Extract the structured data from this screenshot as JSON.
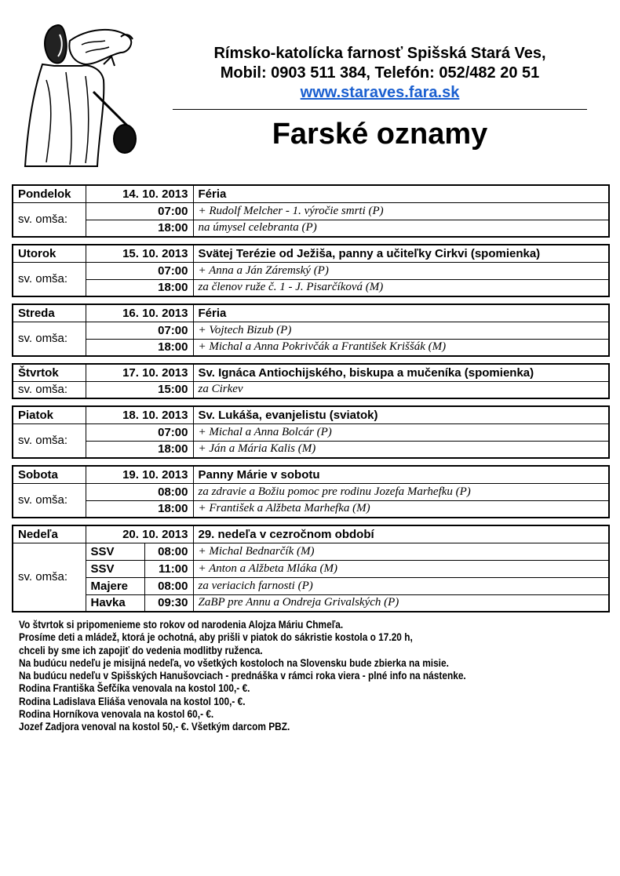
{
  "header": {
    "line1": "Rímsko-katolícka farnosť Spišská Stará Ves,",
    "line2": "Mobil: 0903 511 384, Telefón: 052/482 20 51",
    "website": "www.staraves.fara.sk",
    "title": "Farské oznamy"
  },
  "mass_label": "sv. omša:",
  "days": [
    {
      "day": "Pondelok",
      "date": "14. 10. 2013",
      "name": "Féria",
      "masses": [
        {
          "time": "07:00",
          "intention": "+ Rudolf Melcher - 1. výročie smrti (P)"
        },
        {
          "time": "18:00",
          "intention": "na úmysel celebranta (P)"
        }
      ]
    },
    {
      "day": "Utorok",
      "date": "15. 10. 2013",
      "name": "Svätej Terézie od Ježiša, panny a učiteľky Cirkvi (spomienka)",
      "masses": [
        {
          "time": "07:00",
          "intention": "+ Anna a Ján Záremský (P)"
        },
        {
          "time": "18:00",
          "intention": "za členov ruže č. 1 - J. Pisarčíková (M)"
        }
      ]
    },
    {
      "day": "Streda",
      "date": "16. 10. 2013",
      "name": "Féria",
      "masses": [
        {
          "time": "07:00",
          "intention": "+ Vojtech Bizub (P)"
        },
        {
          "time": "18:00",
          "intention": "+ Michal a Anna Pokrivčák a František Kriššák (M)"
        }
      ]
    },
    {
      "day": "Štvrtok",
      "date": "17. 10. 2013",
      "name": "Sv. Ignáca Antiochijského, biskupa a mučeníka (spomienka)",
      "masses": [
        {
          "time": "15:00",
          "intention": "za Cirkev"
        }
      ]
    },
    {
      "day": "Piatok",
      "date": "18. 10. 2013",
      "name": "Sv. Lukáša, evanjelistu (sviatok)",
      "masses": [
        {
          "time": "07:00",
          "intention": "+ Michal a Anna Bolcár (P)"
        },
        {
          "time": "18:00",
          "intention": "+ Ján a Mária Kalis (M)"
        }
      ]
    },
    {
      "day": "Sobota",
      "date": "19. 10. 2013",
      "name": "Panny Márie v sobotu",
      "masses": [
        {
          "time": "08:00",
          "intention": "za zdravie a Božiu pomoc pre rodinu Jozefa Marhefku (P)"
        },
        {
          "time": "18:00",
          "intention": "+ František a Alžbeta Marhefka (M)"
        }
      ]
    },
    {
      "day": "Nedeľa",
      "date": "20. 10. 2013",
      "name": "29. nedeľa v cezročnom období",
      "masses": [
        {
          "place": "SSV",
          "time": "08:00",
          "intention": "+ Michal Bednarčík (M)"
        },
        {
          "place": "SSV",
          "time": "11:00",
          "intention": "+ Anton a Alžbeta Mláka (M)"
        },
        {
          "place": "Majere",
          "time": "08:00",
          "intention": "za veriacich farnosti (P)"
        },
        {
          "place": "Havka",
          "time": "09:30",
          "intention": "ZaBP pre Annu a Ondreja Grivalských (P)"
        }
      ]
    }
  ],
  "notes": [
    "Vo štvrtok si pripomenieme sto rokov od narodenia Alojza Máriu Chmeľa.",
    "Prosíme deti a mládež, ktorá je ochotná, aby prišli v piatok do sákristie kostola o 17.20 h,",
    "chceli by sme ich zapojiť do vedenia modlitby ruženca.",
    "Na budúcu nedeľu je misijná nedeľa, vo všetkých kostoloch na Slovensku bude zbierka na misie.",
    "Na budúcu nedeľu v Spišských Hanušovciach - prednáška v rámci roka viera - plné info na nástenke.",
    "Rodina Františka Šefčíka venovala na kostol 100,- €.",
    "Rodina Ladislava Eliáša venovala na kostol 100,- €.",
    "Rodina Horníkova venovala na kostol 60,- €.",
    "Jozef Zadjora venoval na kostol 50,- €.  Všetkým darcom PBZ."
  ],
  "colors": {
    "link": "#1a5fd0"
  }
}
